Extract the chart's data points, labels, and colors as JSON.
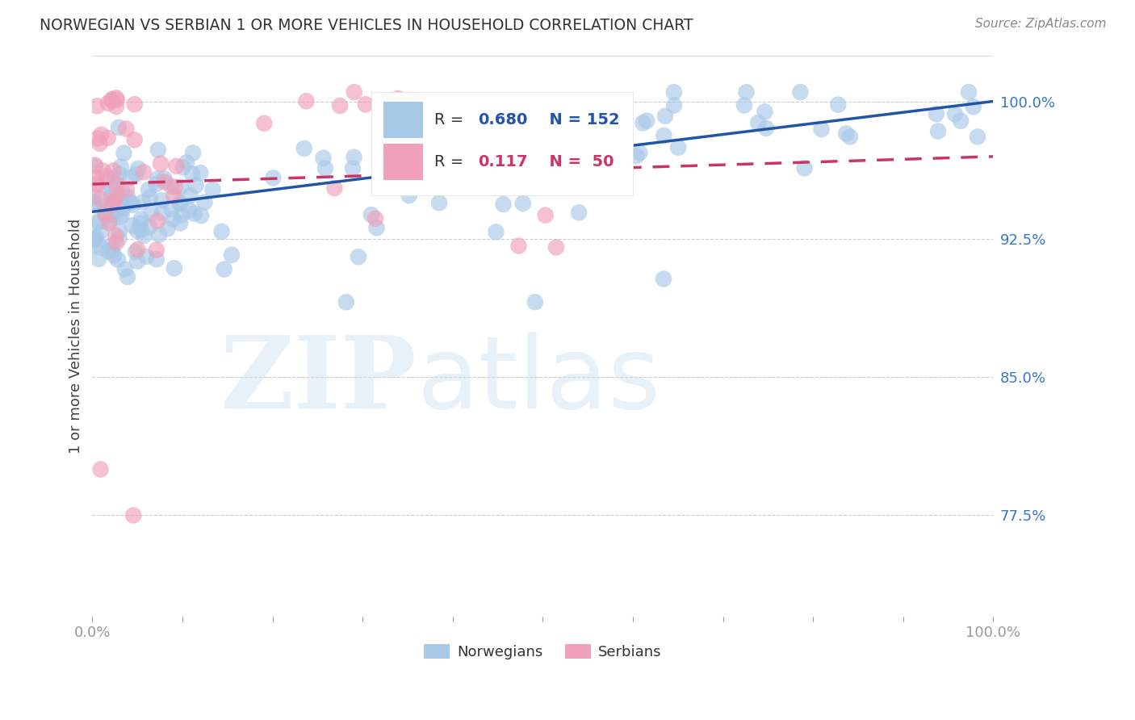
{
  "title": "NORWEGIAN VS SERBIAN 1 OR MORE VEHICLES IN HOUSEHOLD CORRELATION CHART",
  "source": "Source: ZipAtlas.com",
  "ylabel": "1 or more Vehicles in Household",
  "xlim": [
    0.0,
    1.0
  ],
  "ylim": [
    0.72,
    1.025
  ],
  "yticks": [
    0.775,
    0.85,
    0.925,
    1.0
  ],
  "ytick_labels": [
    "77.5%",
    "85.0%",
    "92.5%",
    "100.0%"
  ],
  "norwegian_color": "#a8c8e8",
  "serbian_color": "#f0a0b8",
  "norwegian_line_color": "#2255aa",
  "serbian_line_color": "#cc3366",
  "watermark_zip": "ZIP",
  "watermark_atlas": "atlas",
  "background_color": "#ffffff",
  "grid_color": "#cccccc",
  "title_color": "#333333",
  "axis_label_color": "#444444",
  "tick_color": "#999999",
  "source_color": "#888888",
  "right_tick_color": "#3377cc",
  "legend_r1": "R = 0.680",
  "legend_n1": "N = 152",
  "legend_r2": "R =  0.117",
  "legend_n2": "N =  50",
  "nor_line_start_y": 0.94,
  "nor_line_end_y": 1.0,
  "ser_line_start_y": 0.955,
  "ser_line_end_y": 0.97
}
